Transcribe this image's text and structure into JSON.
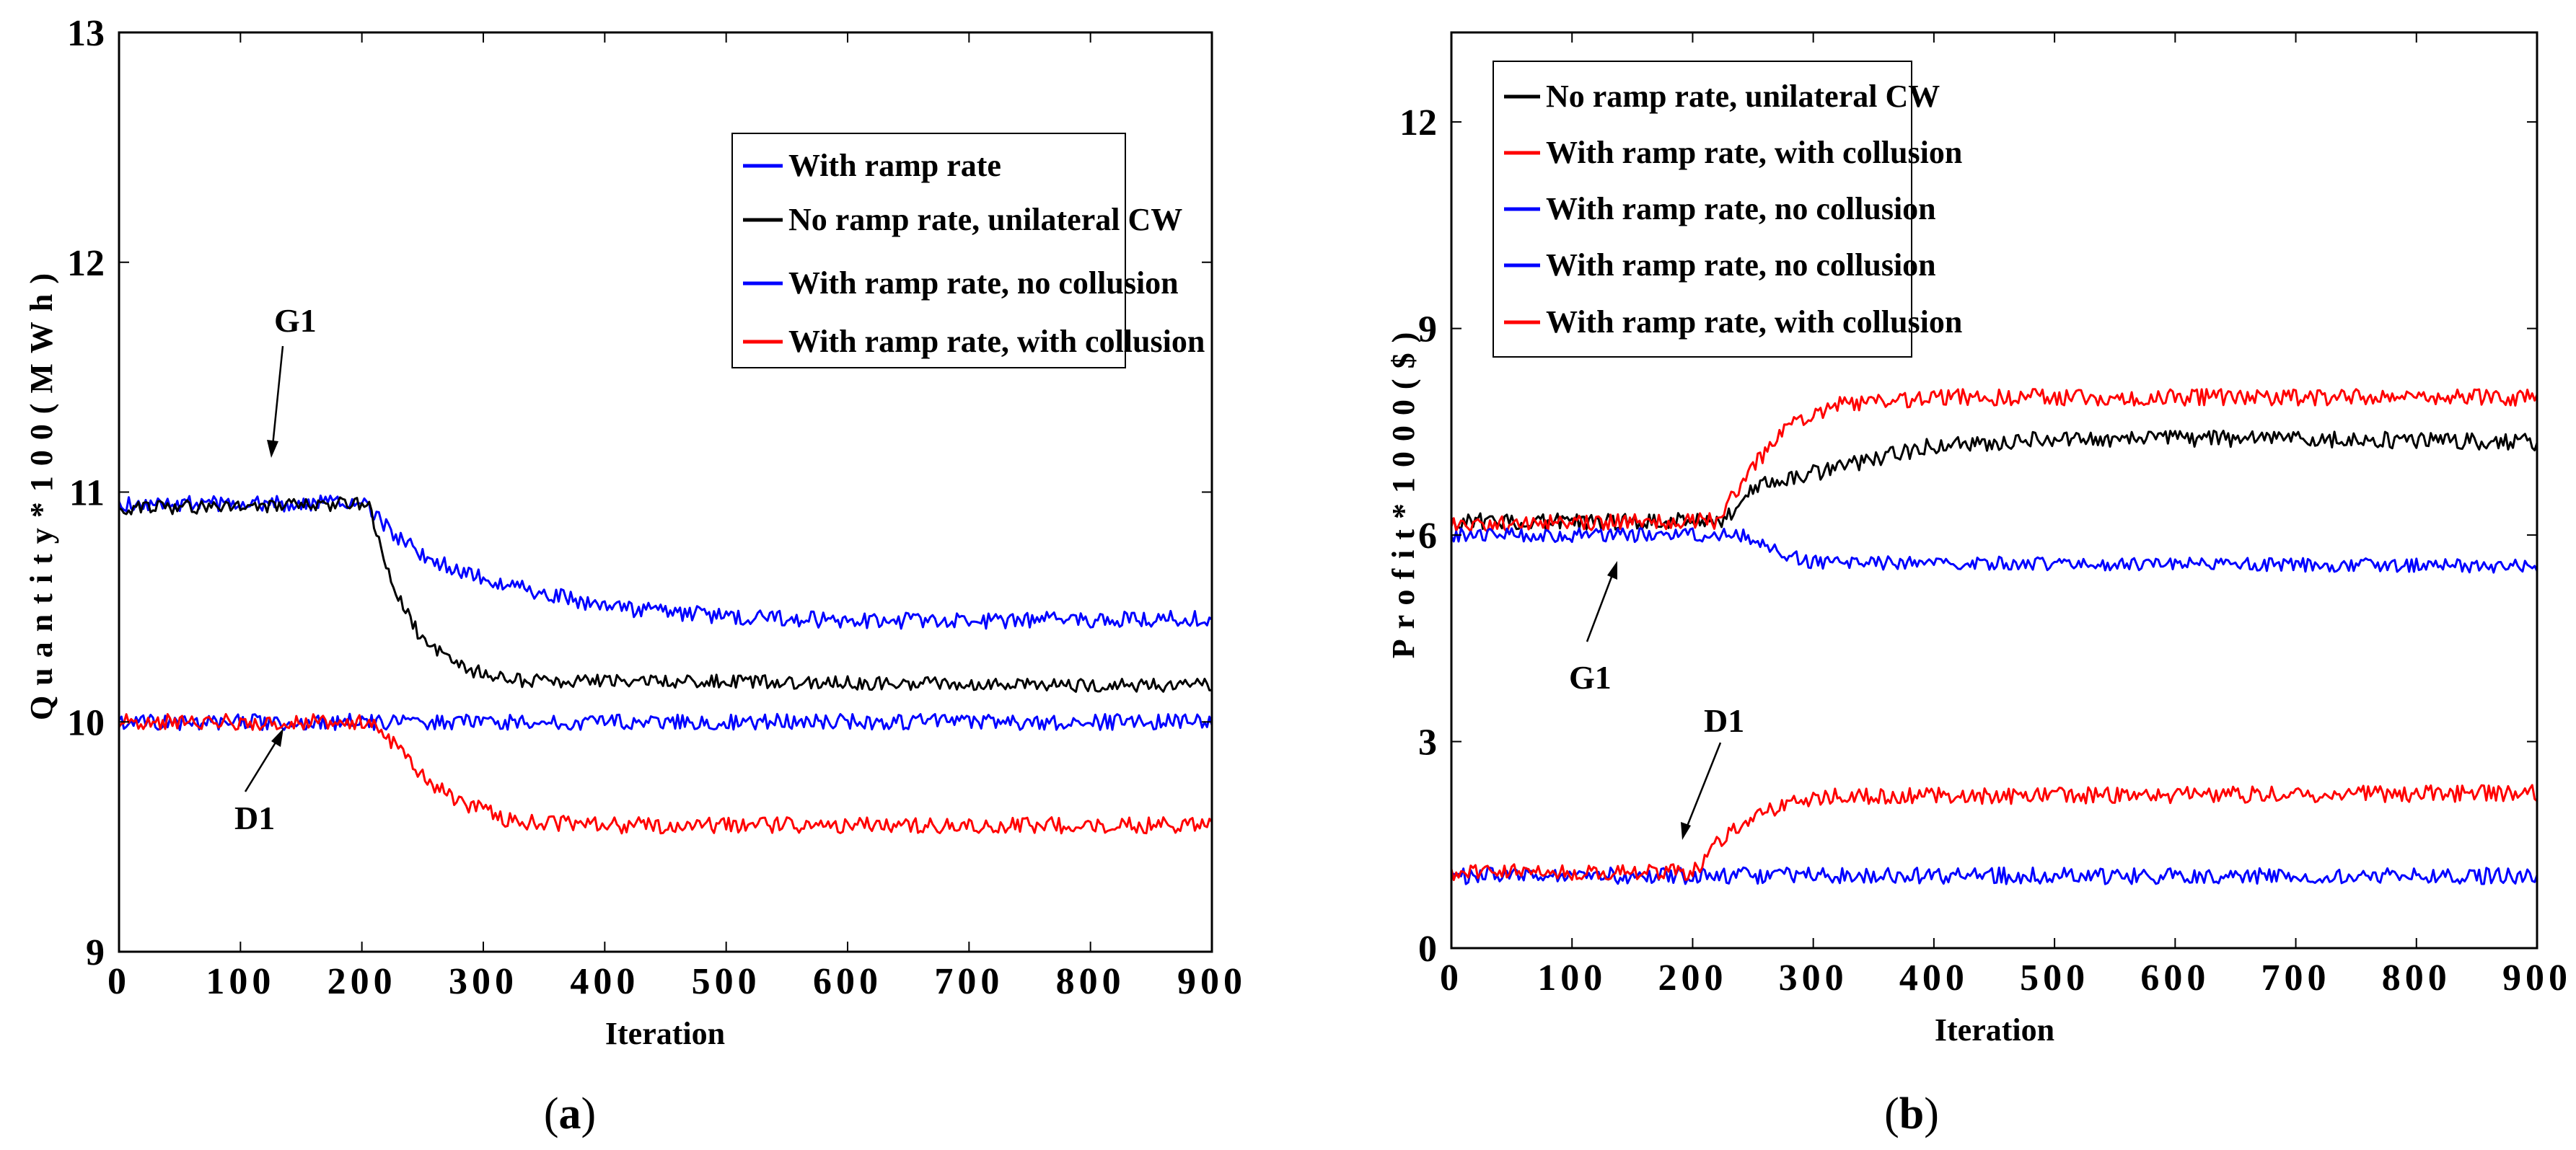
{
  "chart_data": [
    {
      "type": "line",
      "panel_label": "(a)",
      "panel_letter": "a",
      "xlabel": "Iteration",
      "ylabel": "Quantity*100(MWh)",
      "xlim": [
        0,
        900
      ],
      "ylim": [
        9,
        13
      ],
      "xticks": [
        0,
        100,
        200,
        300,
        400,
        500,
        600,
        700,
        800,
        900
      ],
      "yticks": [
        9,
        10,
        11,
        12,
        13
      ],
      "legend_position": "top-right",
      "legend": [
        {
          "label": "With ramp rate",
          "color": "#0000ff"
        },
        {
          "label": "No ramp rate, unilateral CW",
          "color": "#000000"
        },
        {
          "label": "With ramp rate, no collusion",
          "color": "#0000ff"
        },
        {
          "label": "With ramp rate, with collusion",
          "color": "#ff0000"
        }
      ],
      "annotations": [
        {
          "text": "G1",
          "x": 125,
          "y": 10.95
        },
        {
          "text": "D1",
          "x": 140,
          "y": 9.98
        }
      ],
      "series": [
        {
          "name": "G1 with ramp rate",
          "color": "#0000ff",
          "points": [
            [
              0,
              10.95
            ],
            [
              200,
              10.95
            ],
            [
              230,
              10.8
            ],
            [
              260,
              10.7
            ],
            [
              300,
              10.62
            ],
            [
              400,
              10.5
            ],
            [
              500,
              10.46
            ],
            [
              600,
              10.44
            ],
            [
              700,
              10.44
            ],
            [
              900,
              10.45
            ]
          ],
          "noise": 0.035
        },
        {
          "name": "G1 no ramp rate, unilateral CW",
          "color": "#000000",
          "points": [
            [
              0,
              10.93
            ],
            [
              205,
              10.95
            ],
            [
              225,
              10.6
            ],
            [
              250,
              10.35
            ],
            [
              280,
              10.24
            ],
            [
              320,
              10.18
            ],
            [
              400,
              10.18
            ],
            [
              600,
              10.17
            ],
            [
              800,
              10.16
            ],
            [
              900,
              10.16
            ]
          ],
          "noise": 0.03
        },
        {
          "name": "D1 with ramp rate, no collusion",
          "color": "#0000ff",
          "points": [
            [
              0,
              10.0
            ],
            [
              900,
              10.0
            ]
          ],
          "noise": 0.035
        },
        {
          "name": "D1 with ramp rate, with collusion",
          "color": "#ff0000",
          "points": [
            [
              0,
              10.0
            ],
            [
              210,
              10.0
            ],
            [
              240,
              9.82
            ],
            [
              270,
              9.68
            ],
            [
              320,
              9.57
            ],
            [
              400,
              9.55
            ],
            [
              900,
              9.55
            ]
          ],
          "noise": 0.035
        }
      ]
    },
    {
      "type": "line",
      "panel_label": "(b)",
      "panel_letter": "b",
      "xlabel": "Iteration",
      "ylabel": "Profit*1000($)",
      "xlim": [
        0,
        900
      ],
      "ylim": [
        0,
        13.3
      ],
      "xticks": [
        0,
        100,
        200,
        300,
        400,
        500,
        600,
        700,
        800,
        900
      ],
      "yticks": [
        0,
        3,
        6,
        9,
        12
      ],
      "legend_position": "top-left",
      "legend": [
        {
          "label": "No ramp rate, unilateral CW",
          "color": "#000000"
        },
        {
          "label": "With ramp rate, with collusion",
          "color": "#ff0000"
        },
        {
          "label": "With ramp rate, no collusion",
          "color": "#0000ff"
        },
        {
          "label": "With ramp rate, no collusion",
          "color": "#0000ff"
        },
        {
          "label": "With ramp rate, with collusion",
          "color": "#ff0000"
        }
      ],
      "annotations": [
        {
          "text": "G1",
          "x": 135,
          "y": 5.7
        },
        {
          "text": "D1",
          "x": 185,
          "y": 1.4
        }
      ],
      "series": [
        {
          "name": "G1 no ramp rate, unilateral CW",
          "color": "#000000",
          "points": [
            [
              0,
              6.2
            ],
            [
              225,
              6.2
            ],
            [
              250,
              6.7
            ],
            [
              300,
              6.9
            ],
            [
              350,
              7.1
            ],
            [
              400,
              7.3
            ],
            [
              500,
              7.4
            ],
            [
              700,
              7.4
            ],
            [
              900,
              7.35
            ]
          ],
          "noise": 0.12
        },
        {
          "name": "G1 with ramp rate, with collusion",
          "color": "#ff0000",
          "points": [
            [
              0,
              6.15
            ],
            [
              220,
              6.2
            ],
            [
              250,
              7.0
            ],
            [
              280,
              7.6
            ],
            [
              320,
              7.9
            ],
            [
              400,
              8.0
            ],
            [
              900,
              8.0
            ]
          ],
          "noise": 0.12
        },
        {
          "name": "G1 with ramp rate, no collusion",
          "color": "#0000ff",
          "points": [
            [
              0,
              6.0
            ],
            [
              240,
              6.0
            ],
            [
              270,
              5.75
            ],
            [
              300,
              5.6
            ],
            [
              900,
              5.55
            ]
          ],
          "noise": 0.1
        },
        {
          "name": "D1 with ramp rate, no collusion",
          "color": "#0000ff",
          "points": [
            [
              0,
              1.05
            ],
            [
              900,
              1.05
            ]
          ],
          "noise": 0.12
        },
        {
          "name": "D1 with ramp rate, with collusion",
          "color": "#ff0000",
          "points": [
            [
              0,
              1.1
            ],
            [
              200,
              1.1
            ],
            [
              230,
              1.7
            ],
            [
              260,
              2.0
            ],
            [
              300,
              2.2
            ],
            [
              900,
              2.25
            ]
          ],
          "noise": 0.12
        }
      ]
    }
  ]
}
